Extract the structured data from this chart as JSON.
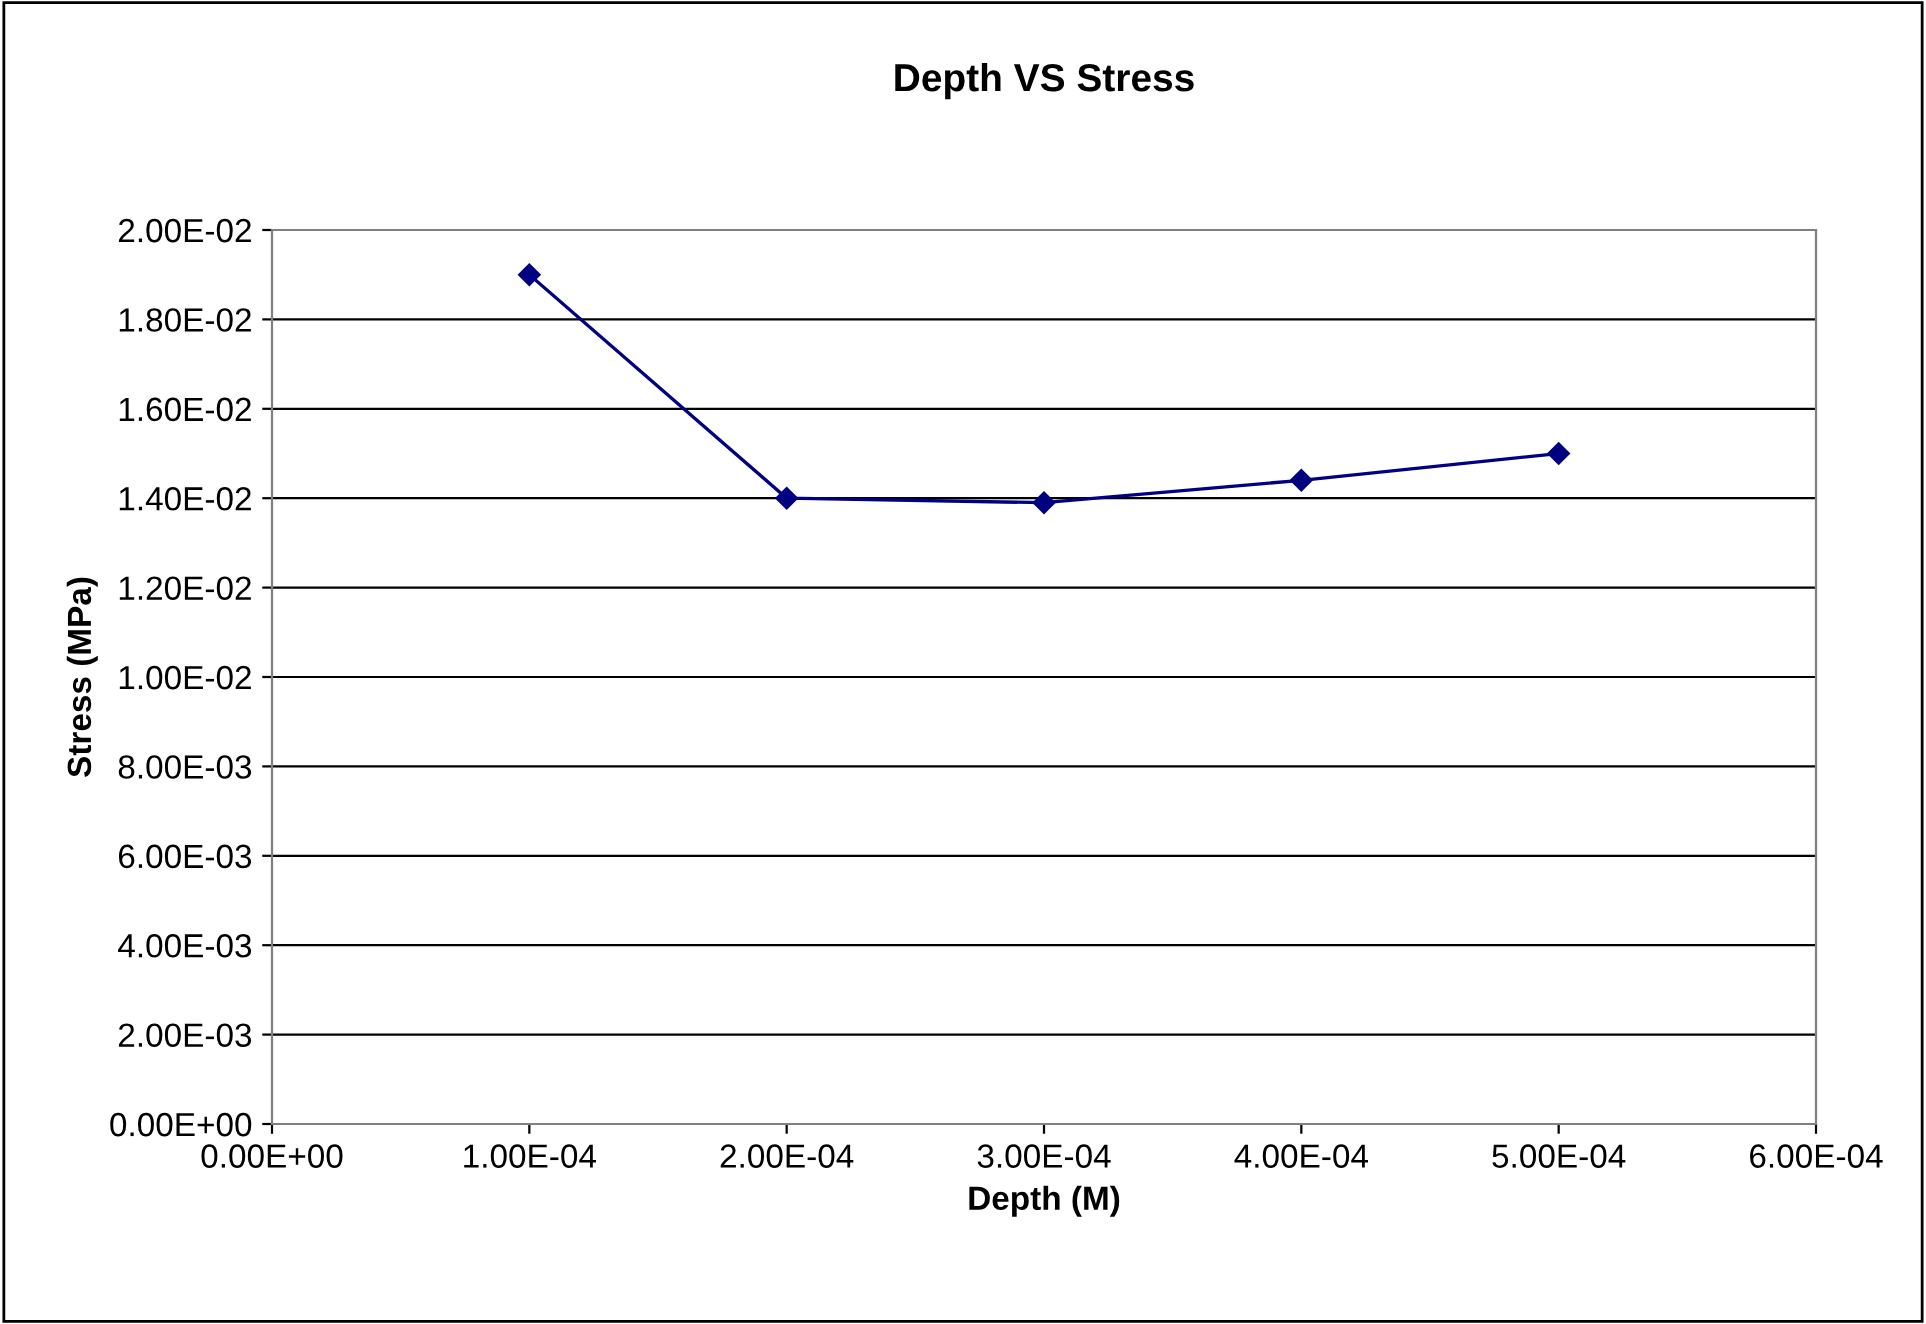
{
  "chart_data": {
    "type": "line",
    "title": "Depth VS Stress",
    "xlabel": "Depth (M)",
    "ylabel": "Stress (MPa)",
    "x": [
      0.0001,
      0.0002,
      0.0003,
      0.0004,
      0.0005
    ],
    "series": [
      {
        "color": "#000080",
        "values": [
          0.019,
          0.014,
          0.0139,
          0.0144,
          0.015
        ]
      }
    ],
    "xlim": [
      0,
      0.0006
    ],
    "ylim": [
      0,
      0.02
    ],
    "xticks": [
      {
        "value": 0,
        "label": "0.00E+00"
      },
      {
        "value": 0.0001,
        "label": "1.00E-04"
      },
      {
        "value": 0.0002,
        "label": "2.00E-04"
      },
      {
        "value": 0.0003,
        "label": "3.00E-04"
      },
      {
        "value": 0.0004,
        "label": "4.00E-04"
      },
      {
        "value": 0.0005,
        "label": "5.00E-04"
      },
      {
        "value": 0.0006,
        "label": "6.00E-04"
      }
    ],
    "yticks": [
      {
        "value": 0,
        "label": "0.00E+00"
      },
      {
        "value": 0.002,
        "label": "2.00E-03"
      },
      {
        "value": 0.004,
        "label": "4.00E-03"
      },
      {
        "value": 0.006,
        "label": "6.00E-03"
      },
      {
        "value": 0.008,
        "label": "8.00E-03"
      },
      {
        "value": 0.01,
        "label": "1.00E-02"
      },
      {
        "value": 0.012,
        "label": "1.20E-02"
      },
      {
        "value": 0.014,
        "label": "1.40E-02"
      },
      {
        "value": 0.016,
        "label": "1.60E-02"
      },
      {
        "value": 0.018,
        "label": "1.80E-02"
      },
      {
        "value": 0.02,
        "label": "2.00E-02"
      }
    ],
    "grid": "y",
    "legend": false,
    "marker": "diamond",
    "line_style": "solid"
  }
}
